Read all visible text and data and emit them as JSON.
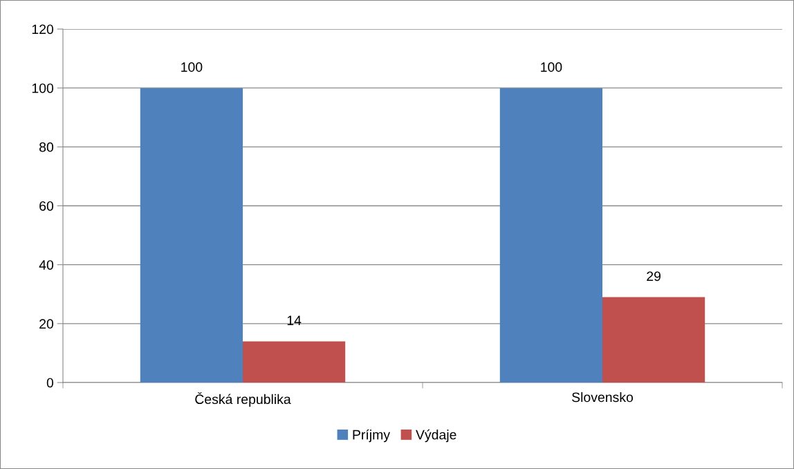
{
  "chart_data": {
    "type": "bar",
    "categories": [
      "Česká republika",
      "Slovensko"
    ],
    "series": [
      {
        "name": "Príjmy",
        "color": "#4f81bd",
        "values": [
          100,
          100
        ]
      },
      {
        "name": "Výdaje",
        "color": "#c0504d",
        "values": [
          14,
          29
        ]
      }
    ],
    "ylim": [
      0,
      120
    ],
    "yticks": [
      0,
      20,
      40,
      60,
      80,
      100,
      120
    ],
    "grid": "y",
    "legend": "bottom",
    "data_labels": true
  }
}
